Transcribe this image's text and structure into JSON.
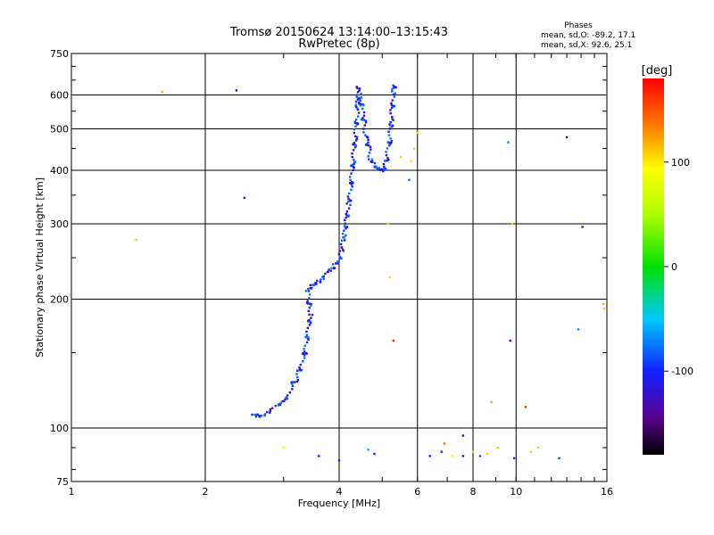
{
  "chart_data": {
    "type": "scatter",
    "title": "Tromsø 20150624 13:14:00–13:15:43",
    "subtitle": "RwPretec (8p)",
    "stats": {
      "heading": "Phases",
      "line_o": "mean, sd,O: -89.2, 17.1",
      "line_x": "mean, sd,X:  92.6, 25.1"
    },
    "xlabel": "Frequency [MHz]",
    "ylabel": "Stationary phase Virtual Height [km]",
    "x_scale": "log",
    "y_scale": "log",
    "xlim": [
      1,
      16
    ],
    "ylim": [
      75,
      750
    ],
    "x_ticks": [
      1,
      2,
      4,
      6,
      8,
      10,
      16
    ],
    "x_tick_labels": [
      "1",
      "2",
      "4",
      "6",
      "8",
      "10",
      "16"
    ],
    "y_ticks": [
      75,
      100,
      200,
      300,
      400,
      500,
      600,
      750
    ],
    "y_tick_labels": [
      "75",
      "100",
      "200",
      "300",
      "400",
      "500",
      "600",
      "750"
    ],
    "grid": true,
    "colorbar": {
      "label": "[deg]",
      "range": [
        -180,
        180
      ],
      "ticks": [
        100,
        0,
        -100
      ],
      "tick_labels": [
        "100",
        "0",
        "-100"
      ]
    },
    "trace_o_mode": {
      "phase": -100,
      "points": [
        [
          2.55,
          106
        ],
        [
          2.6,
          107
        ],
        [
          2.7,
          108
        ],
        [
          2.8,
          110
        ],
        [
          2.95,
          113
        ],
        [
          3.0,
          114
        ],
        [
          3.25,
          135
        ],
        [
          3.35,
          150
        ],
        [
          3.4,
          165
        ],
        [
          3.45,
          185
        ],
        [
          3.4,
          207
        ],
        [
          3.45,
          213
        ],
        [
          3.5,
          218
        ],
        [
          3.6,
          222
        ],
        [
          3.7,
          225
        ],
        [
          3.8,
          230
        ],
        [
          3.9,
          238
        ],
        [
          4.0,
          248
        ],
        [
          4.05,
          262
        ],
        [
          4.1,
          278
        ],
        [
          4.15,
          300
        ],
        [
          4.2,
          330
        ],
        [
          4.25,
          370
        ],
        [
          4.3,
          420
        ],
        [
          4.35,
          480
        ],
        [
          4.4,
          560
        ],
        [
          4.42,
          620
        ],
        [
          4.5,
          560
        ],
        [
          4.6,
          480
        ],
        [
          4.7,
          430
        ],
        [
          4.8,
          410
        ],
        [
          4.9,
          400
        ],
        [
          5.0,
          395
        ],
        [
          5.1,
          420
        ],
        [
          5.2,
          470
        ],
        [
          5.25,
          530
        ],
        [
          5.3,
          600
        ],
        [
          5.33,
          640
        ],
        [
          3.6,
          86
        ],
        [
          4.0,
          84
        ],
        [
          4.8,
          87
        ],
        [
          6.4,
          86
        ],
        [
          6.8,
          88
        ],
        [
          7.6,
          86
        ],
        [
          9.9,
          85
        ]
      ]
    },
    "scattered_points": [
      {
        "x": 1.4,
        "y": 275,
        "phase": 110
      },
      {
        "x": 1.6,
        "y": 610,
        "phase": 115
      },
      {
        "x": 2.35,
        "y": 615,
        "phase": -130
      },
      {
        "x": 2.45,
        "y": 345,
        "phase": -120
      },
      {
        "x": 3.0,
        "y": 90,
        "phase": 80
      },
      {
        "x": 4.65,
        "y": 89,
        "phase": -60
      },
      {
        "x": 5.15,
        "y": 300,
        "phase": 55
      },
      {
        "x": 5.2,
        "y": 225,
        "phase": 110
      },
      {
        "x": 5.3,
        "y": 160,
        "phase": 170
      },
      {
        "x": 5.8,
        "y": 420,
        "phase": 105
      },
      {
        "x": 5.9,
        "y": 450,
        "phase": 110
      },
      {
        "x": 6.0,
        "y": 490,
        "phase": 105
      },
      {
        "x": 5.75,
        "y": 380,
        "phase": -80
      },
      {
        "x": 5.5,
        "y": 430,
        "phase": 110
      },
      {
        "x": 6.9,
        "y": 92,
        "phase": 140
      },
      {
        "x": 7.2,
        "y": 86,
        "phase": 100
      },
      {
        "x": 7.6,
        "y": 96,
        "phase": -120
      },
      {
        "x": 8.0,
        "y": 88,
        "phase": 60
      },
      {
        "x": 8.3,
        "y": 86,
        "phase": -90
      },
      {
        "x": 8.6,
        "y": 87,
        "phase": 105
      },
      {
        "x": 8.8,
        "y": 115,
        "phase": 120
      },
      {
        "x": 9.1,
        "y": 90,
        "phase": 40
      },
      {
        "x": 9.6,
        "y": 465,
        "phase": -70
      },
      {
        "x": 9.7,
        "y": 160,
        "phase": -140
      },
      {
        "x": 9.8,
        "y": 300,
        "phase": 110
      },
      {
        "x": 10.5,
        "y": 112,
        "phase": 165
      },
      {
        "x": 10.8,
        "y": 88,
        "phase": 110
      },
      {
        "x": 11.2,
        "y": 90,
        "phase": 50
      },
      {
        "x": 12.5,
        "y": 85,
        "phase": -90
      },
      {
        "x": 13.0,
        "y": 478,
        "phase": -150
      },
      {
        "x": 14.1,
        "y": 295,
        "phase": -110
      },
      {
        "x": 13.8,
        "y": 170,
        "phase": -70
      },
      {
        "x": 15.7,
        "y": 195,
        "phase": 115
      },
      {
        "x": 15.8,
        "y": 190,
        "phase": 110
      }
    ]
  }
}
